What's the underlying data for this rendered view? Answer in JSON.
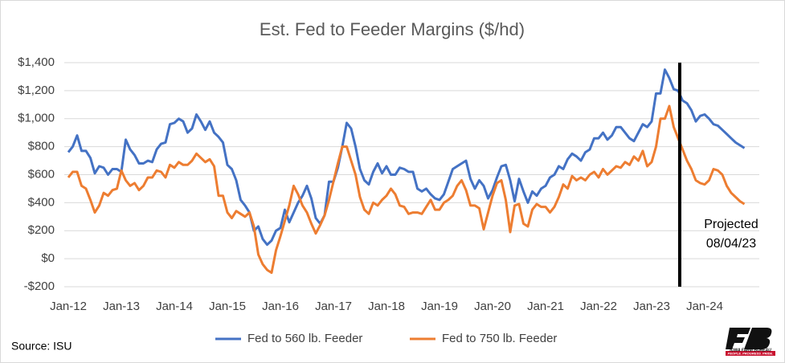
{
  "chart_data": {
    "type": "line",
    "title": "Est. Fed to Feeder Margins ($/hd)",
    "categories": [
      "Jan-12",
      null,
      null,
      null,
      null,
      null,
      null,
      null,
      null,
      null,
      null,
      null,
      "Jan-13",
      null,
      null,
      null,
      null,
      null,
      null,
      null,
      null,
      null,
      null,
      null,
      "Jan-14",
      null,
      null,
      null,
      null,
      null,
      null,
      null,
      null,
      null,
      null,
      null,
      "Jan-15",
      null,
      null,
      null,
      null,
      null,
      null,
      null,
      null,
      null,
      null,
      null,
      "Jan-16",
      null,
      null,
      null,
      null,
      null,
      null,
      null,
      null,
      null,
      null,
      null,
      "Jan-17",
      null,
      null,
      null,
      null,
      null,
      null,
      null,
      null,
      null,
      null,
      null,
      "Jan-18",
      null,
      null,
      null,
      null,
      null,
      null,
      null,
      null,
      null,
      null,
      null,
      "Jan-19",
      null,
      null,
      null,
      null,
      null,
      null,
      null,
      null,
      null,
      null,
      null,
      "Jan-20",
      null,
      null,
      null,
      null,
      null,
      null,
      null,
      null,
      null,
      null,
      null,
      "Jan-21",
      null,
      null,
      null,
      null,
      null,
      null,
      null,
      null,
      null,
      null,
      null,
      "Jan-22",
      null,
      null,
      null,
      null,
      null,
      null,
      null,
      null,
      null,
      null,
      null,
      "Jan-23",
      null,
      null,
      null,
      null,
      null,
      null,
      null,
      null,
      null,
      null,
      null,
      "Jan-24",
      null,
      null,
      null,
      null,
      null,
      null,
      null,
      null,
      null
    ],
    "series": [
      {
        "name": "Fed to 560 lb. Feeder",
        "color": "#4472c4",
        "values": [
          760,
          800,
          880,
          770,
          770,
          720,
          610,
          660,
          650,
          600,
          640,
          640,
          620,
          850,
          780,
          740,
          680,
          680,
          700,
          690,
          780,
          820,
          830,
          960,
          970,
          1000,
          980,
          900,
          930,
          1030,
          980,
          920,
          980,
          900,
          870,
          830,
          670,
          640,
          560,
          420,
          380,
          330,
          200,
          230,
          140,
          100,
          130,
          200,
          220,
          350,
          260,
          330,
          400,
          450,
          520,
          430,
          290,
          250,
          310,
          550,
          550,
          650,
          800,
          970,
          930,
          800,
          640,
          560,
          530,
          620,
          680,
          610,
          660,
          600,
          600,
          650,
          640,
          620,
          620,
          500,
          480,
          500,
          460,
          430,
          420,
          460,
          550,
          640,
          660,
          680,
          700,
          570,
          500,
          560,
          520,
          430,
          490,
          580,
          660,
          670,
          560,
          410,
          570,
          480,
          400,
          480,
          450,
          500,
          520,
          580,
          600,
          660,
          640,
          710,
          750,
          730,
          700,
          760,
          780,
          860,
          860,
          900,
          850,
          880,
          940,
          940,
          900,
          860,
          840,
          900,
          960,
          940,
          980,
          1180,
          1180,
          1350,
          1290,
          1210,
          1200,
          1130,
          1110,
          1060,
          980,
          1020,
          1030,
          1000,
          960,
          950,
          920,
          890,
          860,
          830,
          810,
          790
        ]
      },
      {
        "name": "Fed to 750 lb. Feeder",
        "color": "#ed7d31",
        "values": [
          580,
          620,
          620,
          520,
          500,
          420,
          330,
          380,
          470,
          450,
          490,
          500,
          630,
          560,
          520,
          540,
          490,
          520,
          580,
          580,
          630,
          620,
          580,
          670,
          650,
          690,
          670,
          670,
          700,
          750,
          720,
          690,
          710,
          660,
          450,
          450,
          330,
          290,
          340,
          320,
          300,
          330,
          230,
          30,
          -40,
          -80,
          -100,
          60,
          160,
          270,
          380,
          520,
          460,
          380,
          330,
          250,
          180,
          240,
          310,
          420,
          550,
          680,
          800,
          800,
          700,
          600,
          440,
          350,
          320,
          400,
          380,
          420,
          450,
          500,
          460,
          380,
          370,
          320,
          330,
          330,
          320,
          370,
          420,
          350,
          350,
          400,
          420,
          450,
          520,
          560,
          490,
          380,
          380,
          360,
          210,
          330,
          450,
          540,
          560,
          420,
          190,
          380,
          390,
          250,
          230,
          350,
          390,
          370,
          370,
          330,
          370,
          440,
          530,
          500,
          590,
          560,
          580,
          560,
          600,
          620,
          580,
          640,
          600,
          630,
          660,
          650,
          690,
          670,
          730,
          700,
          770,
          660,
          690,
          800,
          1000,
          1000,
          1090,
          940,
          860,
          780,
          700,
          640,
          560,
          540,
          530,
          560,
          640,
          630,
          600,
          520,
          470,
          440,
          410,
          390
        ]
      }
    ],
    "ylim": [
      -200,
      1400
    ],
    "yticks": [
      {
        "value": -200,
        "label": "-$200"
      },
      {
        "value": 0,
        "label": "$0"
      },
      {
        "value": 200,
        "label": "$200"
      },
      {
        "value": 400,
        "label": "$400"
      },
      {
        "value": 600,
        "label": "$600"
      },
      {
        "value": 800,
        "label": "$800"
      },
      {
        "value": 1000,
        "label": "$1,000"
      },
      {
        "value": 1200,
        "label": "$1,200"
      },
      {
        "value": 1400,
        "label": "$1,400"
      }
    ],
    "grid": true,
    "legend": "bottom",
    "annotation": [
      "Projected",
      "08/04/23"
    ],
    "source": "Source: ISU"
  },
  "logo": {
    "name": "IOWA FARM BUREAU",
    "tagline": "PEOPLE. PROGRESS. PRIDE."
  }
}
